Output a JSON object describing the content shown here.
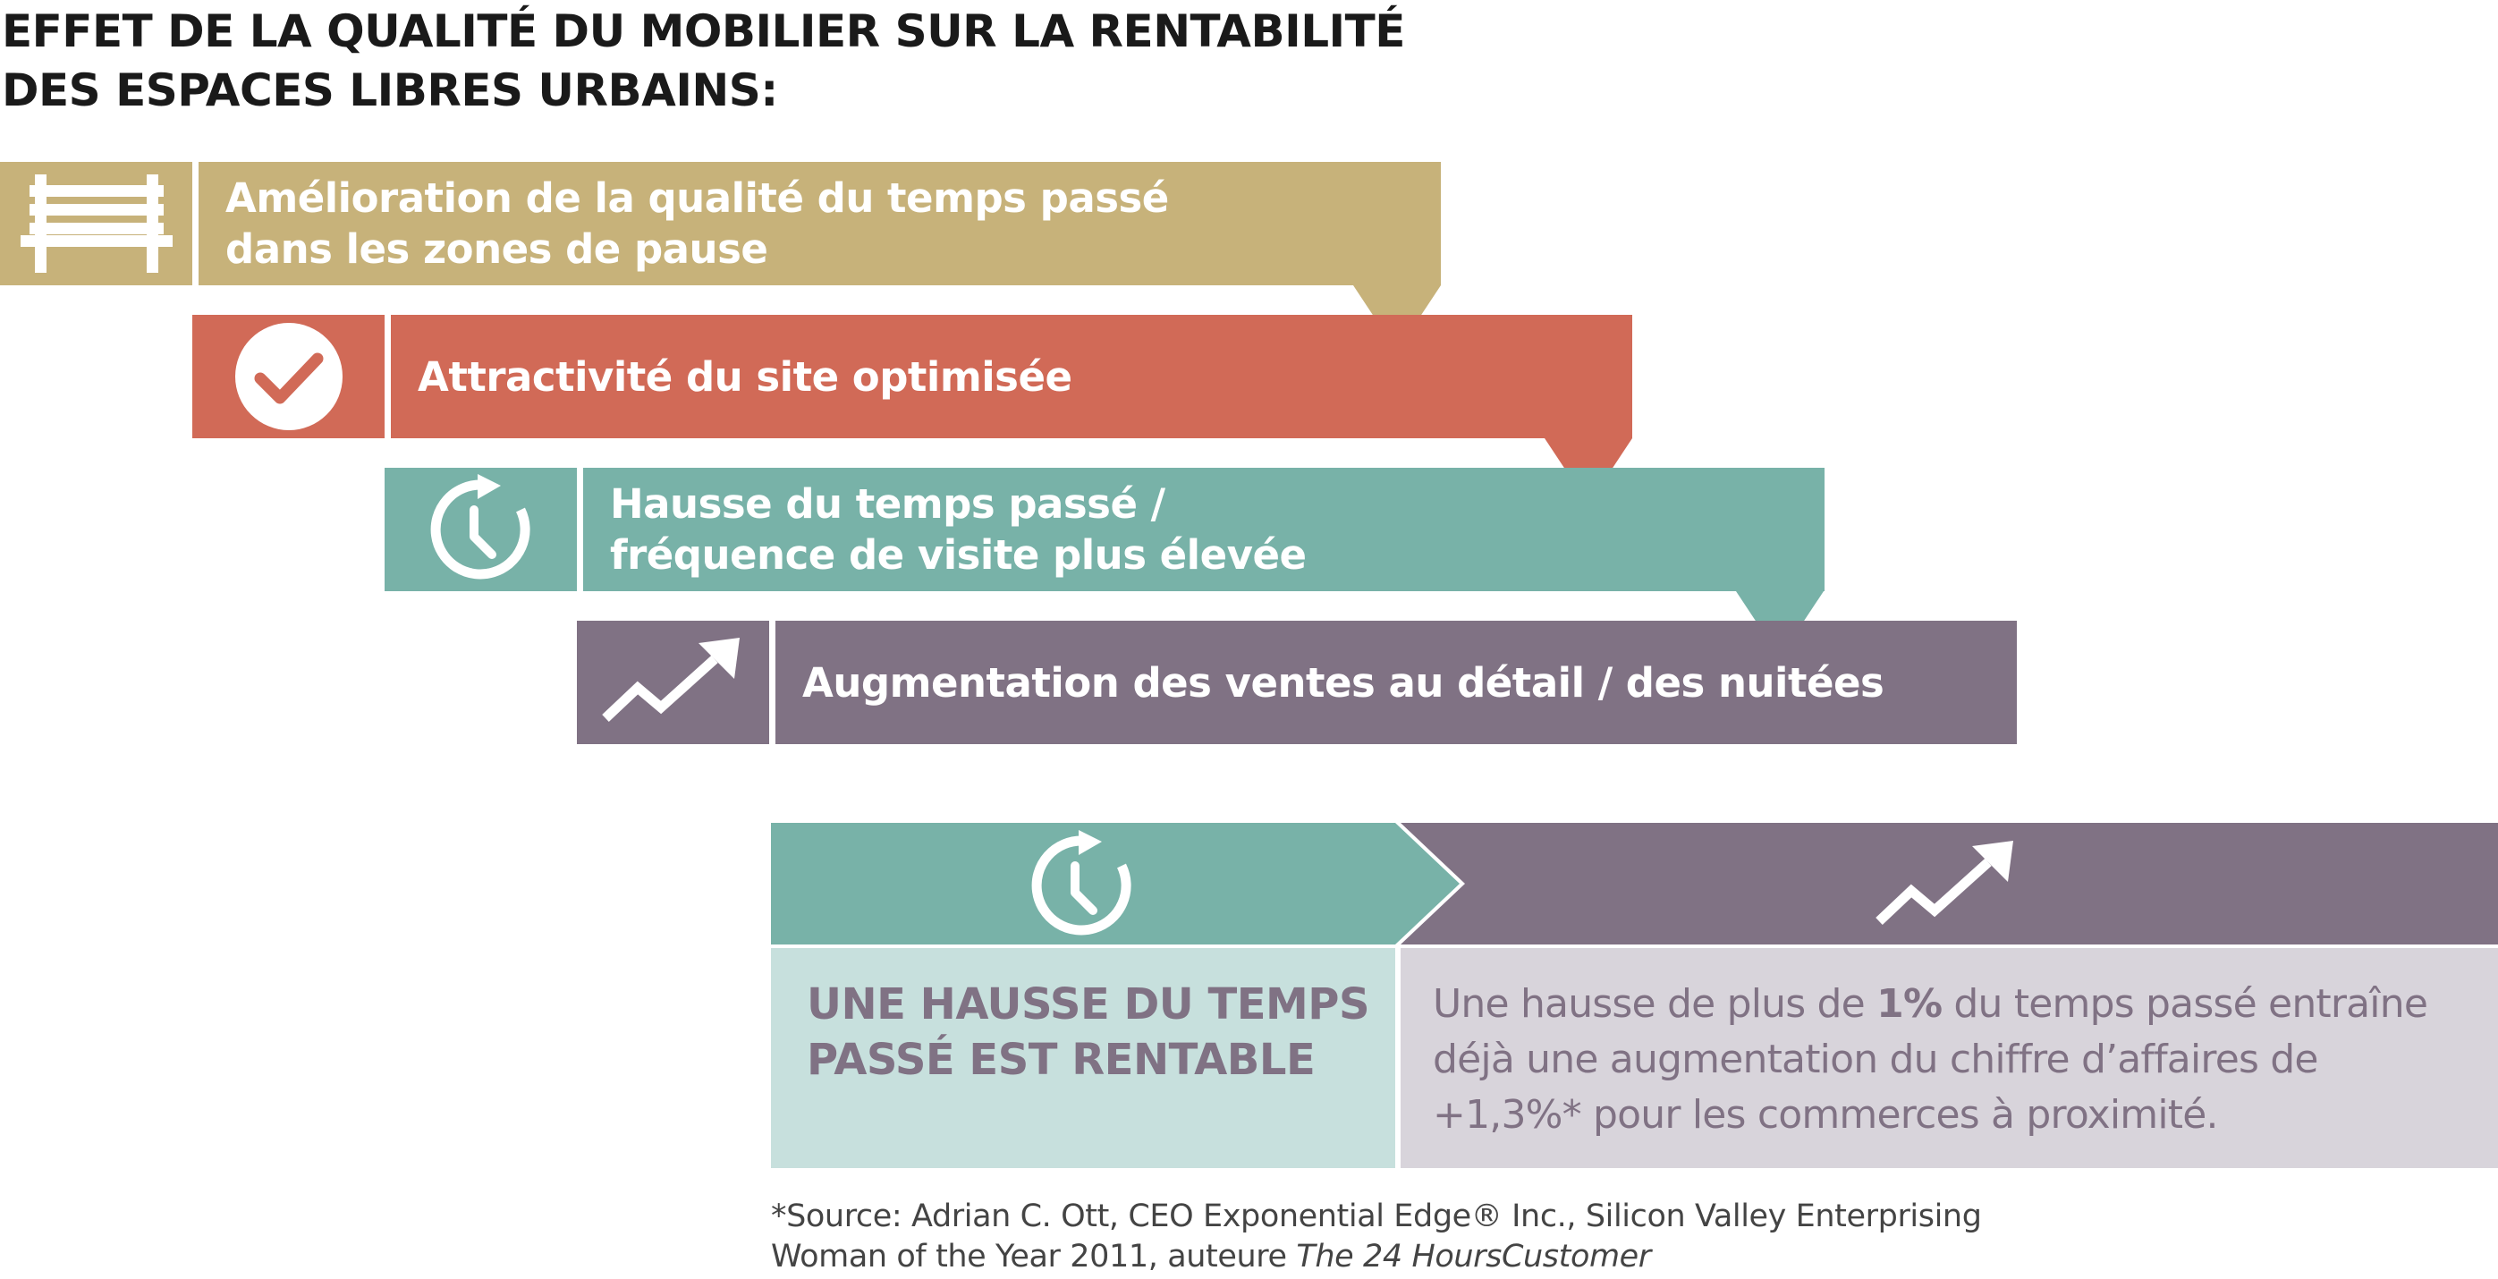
{
  "title": {
    "line1": "EFFET DE LA QUALITÉ DU MOBILIER SUR LA RENTABILITÉ",
    "line2": "DES ESPACES LIBRES URBAINS:"
  },
  "steps": [
    {
      "lines": [
        "Amélioration de la qualité du temps passé",
        "dans les zones de pause"
      ],
      "icon": "bench-icon",
      "color": "#c7b27a"
    },
    {
      "lines": [
        "Attractivité du site optimisée"
      ],
      "icon": "checkmark-icon",
      "color": "#d16a57"
    },
    {
      "lines": [
        "Hausse du temps passé /",
        "fréquence de visite plus élevée"
      ],
      "icon": "clock-refresh-icon",
      "color": "#78b2a8"
    },
    {
      "lines": [
        "Augmentation des ventes au détail / des nuitées"
      ],
      "icon": "trend-up-icon",
      "color": "#807284"
    }
  ],
  "info": {
    "left": {
      "icon": "clock-refresh-icon",
      "lines": [
        "UNE HAUSSE DU TEMPS",
        "PASSÉ EST RENTABLE"
      ]
    },
    "right": {
      "icon": "trend-up-icon",
      "line1_pre": "Une hausse de plus de ",
      "line1_bold": "1%",
      "line1_post": " du temps passé entraîne",
      "line2": "déjà une augmentation du chiffre d’affaires de",
      "line3": "+1,3%* pour les commerces à proximité."
    }
  },
  "footnote": {
    "line1": "*Source: Adrian C. Ott, CEO Exponential Edge® Inc., Silicon Valley Enterprising",
    "line2_pre": "Woman of the Year 2011, auteure ",
    "line2_italic": "The 24 HoursCustomer"
  },
  "colors": {
    "gold": "#c7b27a",
    "red": "#d16a57",
    "teal": "#78b2a8",
    "purple": "#807284",
    "teal_light": "#c7e0dd",
    "gray_light": "#d8d4db"
  }
}
